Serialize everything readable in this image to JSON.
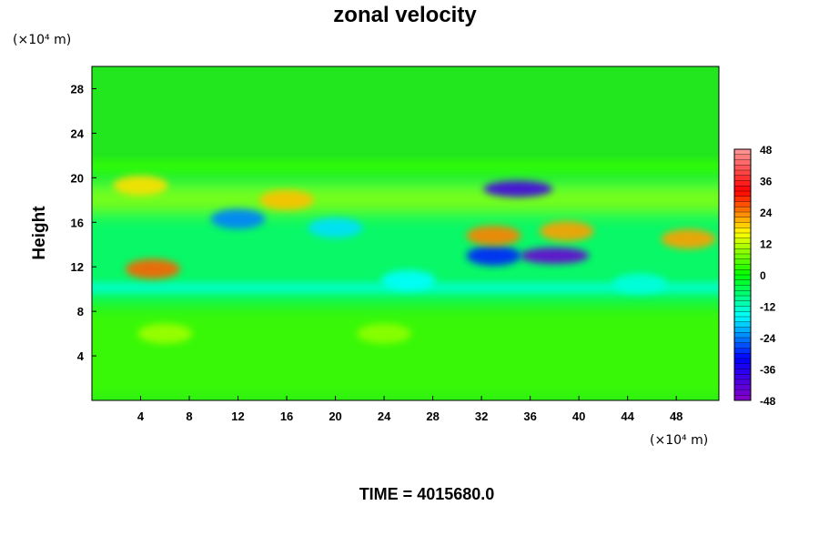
{
  "chart_data": {
    "type": "heatmap",
    "title": "zonal velocity",
    "ylabel": "Height",
    "xlabel": "",
    "x_unit": "(×10⁴ m)",
    "y_unit": "(×10⁴ m)",
    "xlim": [
      0,
      51.5
    ],
    "ylim": [
      0,
      30
    ],
    "x_ticks": [
      4,
      8,
      12,
      16,
      20,
      24,
      28,
      32,
      36,
      40,
      44,
      48
    ],
    "y_ticks": [
      4,
      8,
      12,
      16,
      20,
      24,
      28
    ],
    "colorbar": {
      "min": -48,
      "max": 48,
      "ticks": [
        48,
        36,
        24,
        12,
        0,
        -12,
        -24,
        -36,
        -48
      ],
      "colors": [
        "#8a00c8",
        "#0000ff",
        "#00ffff",
        "#00ff00",
        "#ffff00",
        "#ff0000",
        "#ff9a9a"
      ]
    },
    "field_features": [
      {
        "x": 35,
        "y": 19,
        "value": -40
      },
      {
        "x": 38,
        "y": 13,
        "value": -44
      },
      {
        "x": 33,
        "y": 13,
        "value": -30
      },
      {
        "x": 4,
        "y": 19.3,
        "value": 18
      },
      {
        "x": 16,
        "y": 18,
        "value": 20
      },
      {
        "x": 33,
        "y": 14.8,
        "value": 24
      },
      {
        "x": 39,
        "y": 15.2,
        "value": 22
      },
      {
        "x": 5,
        "y": 11.8,
        "value": 26
      },
      {
        "x": 49,
        "y": 14.5,
        "value": 22
      },
      {
        "x": 12,
        "y": 16.3,
        "value": -24
      },
      {
        "x": 20,
        "y": 15.5,
        "value": -18
      },
      {
        "x": 6,
        "y": 6,
        "value": 10
      },
      {
        "x": 24,
        "y": 6,
        "value": 9
      },
      {
        "x": 26,
        "y": 10.8,
        "value": -16
      },
      {
        "x": 45,
        "y": 10.5,
        "value": -14
      }
    ]
  },
  "footer": {
    "time_label": "TIME = 4015680.0"
  }
}
